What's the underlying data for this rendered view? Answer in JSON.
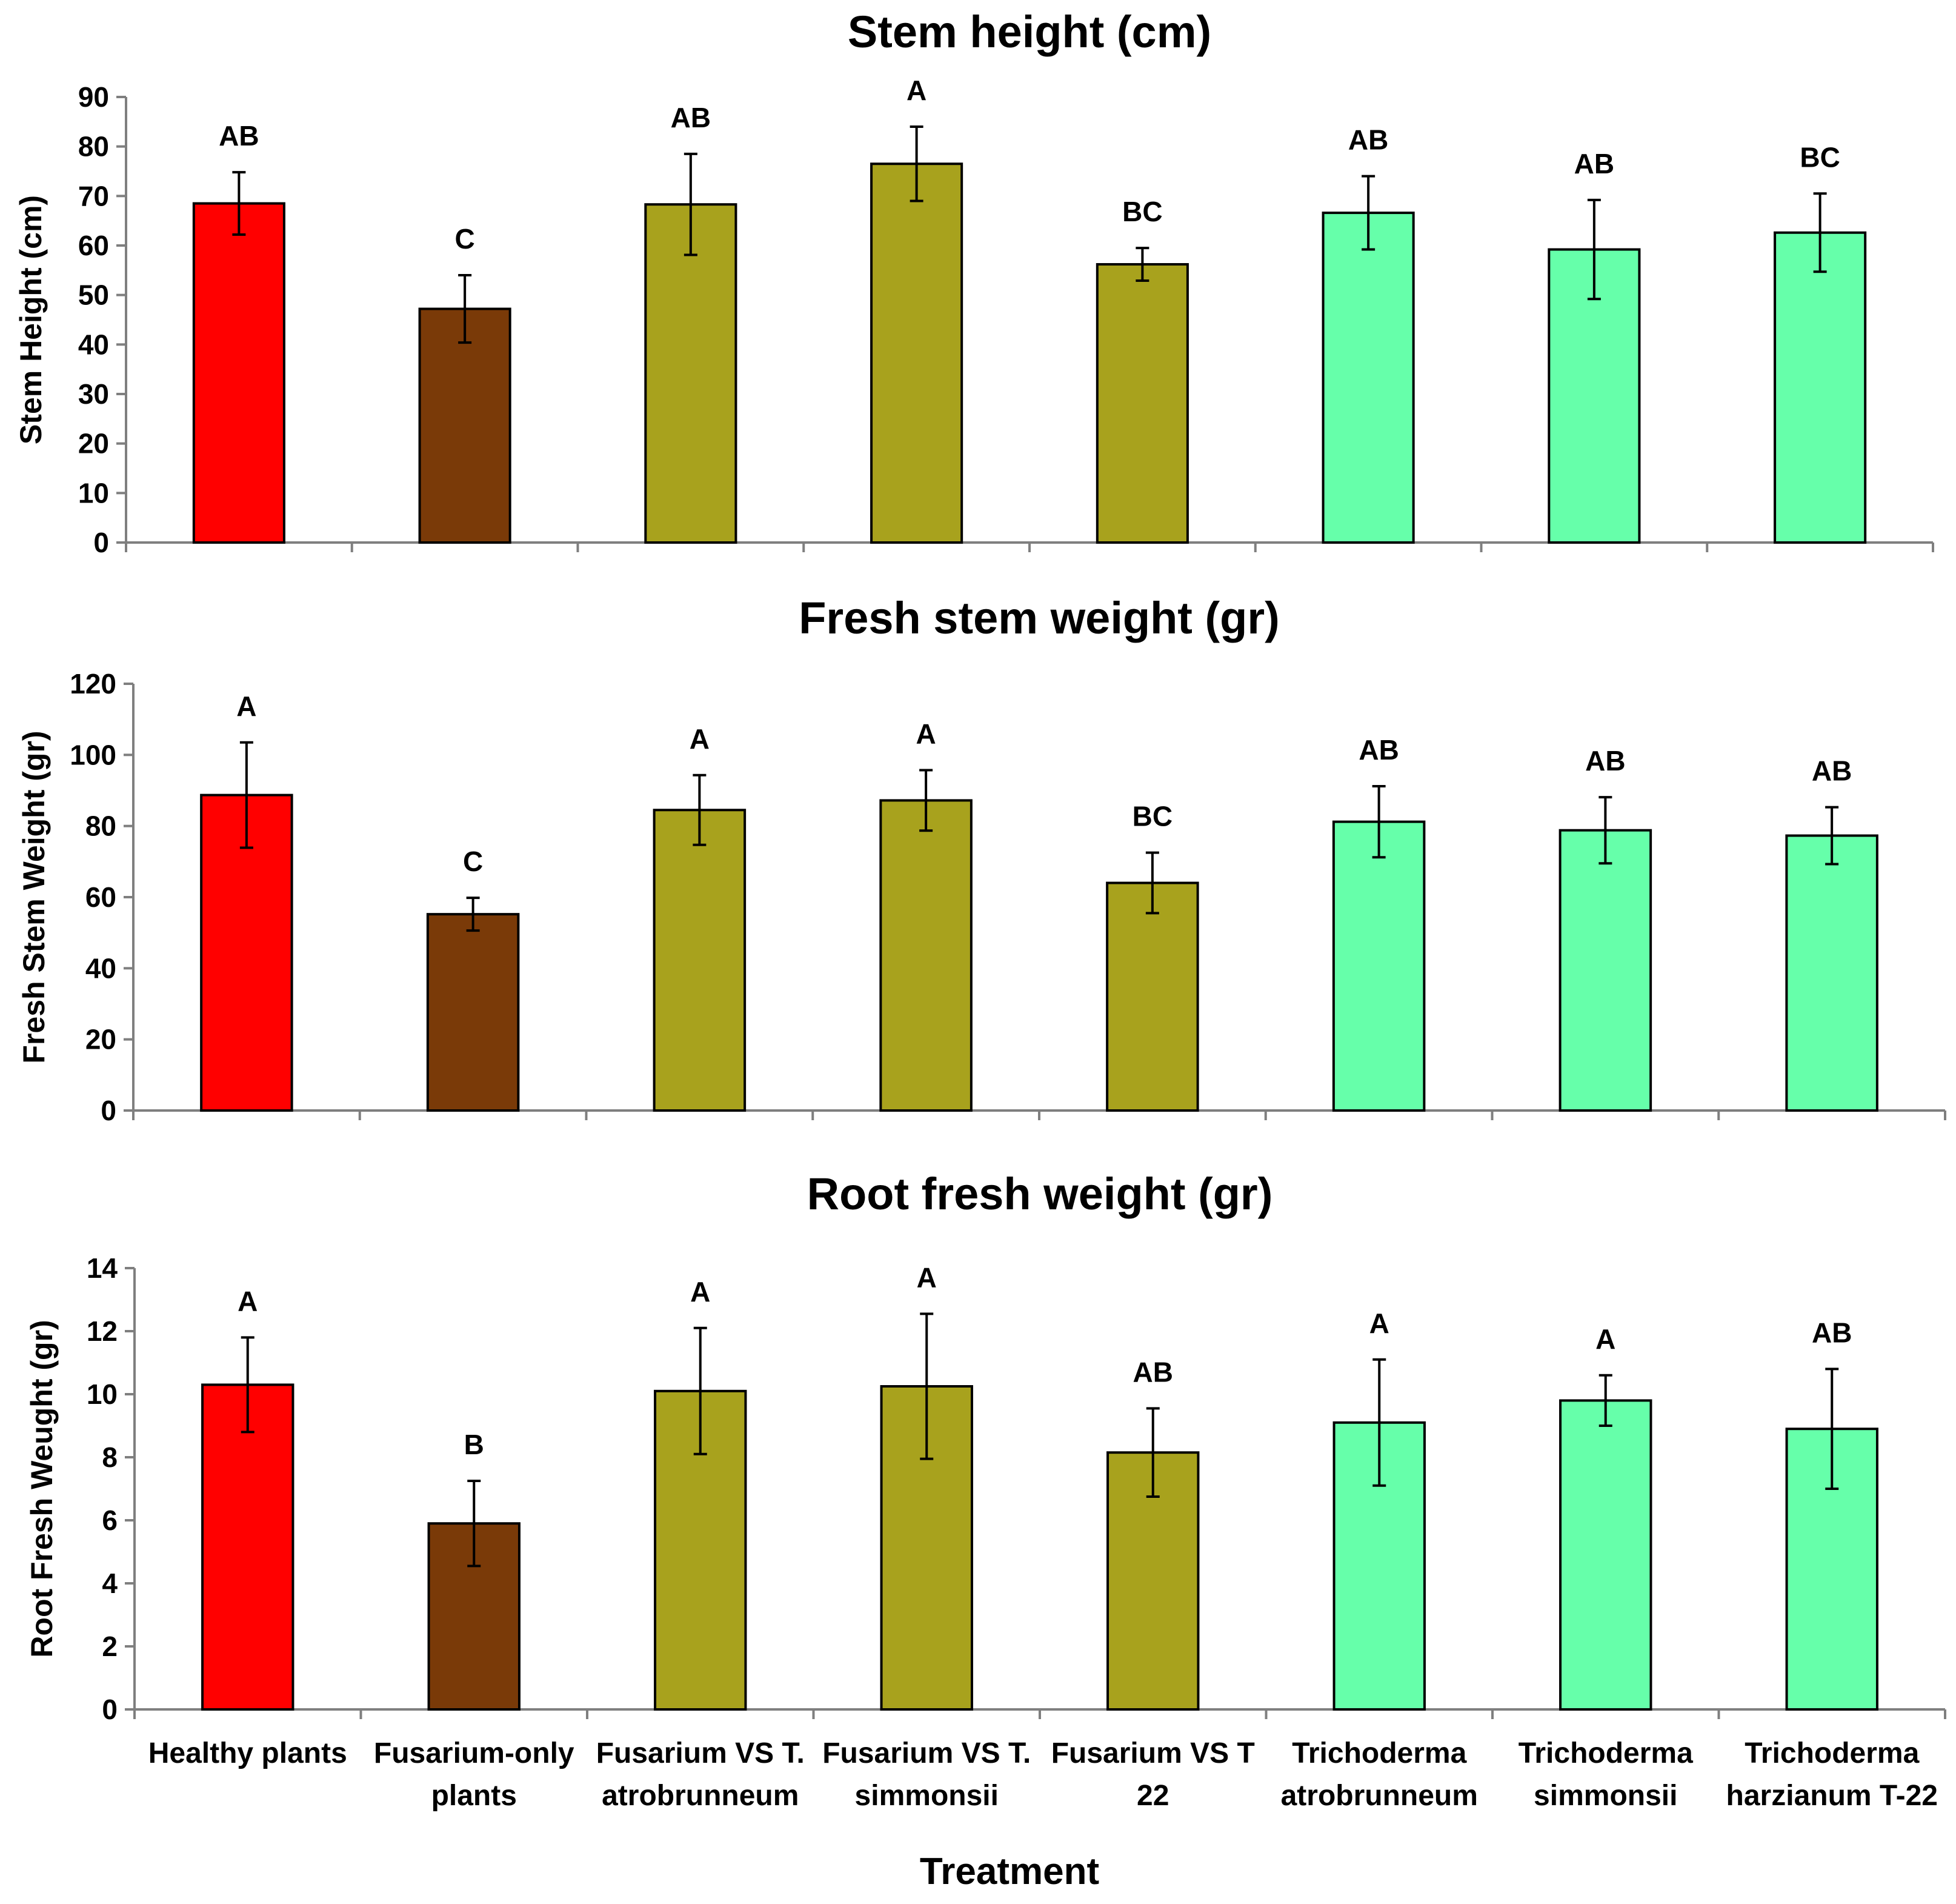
{
  "categories": [
    [
      "Healthy plants"
    ],
    [
      "Fusarium-only",
      "plants"
    ],
    [
      "Fusarium VS T.",
      "atrobrunneum"
    ],
    [
      "Fusarium VS T.",
      "simmonsii"
    ],
    [
      "Fusarium VS T",
      "22"
    ],
    [
      "Trichoderma",
      "atrobrunneum"
    ],
    [
      "Trichoderma",
      "simmonsii"
    ],
    [
      "Trichoderma",
      "harzianum T-22"
    ]
  ],
  "colors": [
    "#ff0000",
    "#7a3a08",
    "#a8a21d",
    "#a8a21d",
    "#a8a21d",
    "#66ffaa",
    "#66ffaa",
    "#66ffaa"
  ],
  "xlabel": "Treatment",
  "chart_data": [
    {
      "type": "bar",
      "title": "Stem height (cm)",
      "ylabel": "Stem Height (cm)",
      "xlabel": "",
      "ylim": [
        0,
        90
      ],
      "yticks": [
        0,
        10,
        20,
        30,
        40,
        50,
        60,
        70,
        80,
        90
      ],
      "values": [
        68.5,
        47.2,
        68.3,
        76.5,
        56.2,
        66.6,
        59.2,
        62.6
      ],
      "errors": [
        6.3,
        6.8,
        10.2,
        7.5,
        3.3,
        7.4,
        10.0,
        7.9
      ],
      "significance": [
        "AB",
        "C",
        "AB",
        "A",
        "BC",
        "AB",
        "AB",
        "BC"
      ]
    },
    {
      "type": "bar",
      "title": "Fresh stem weight  (gr)",
      "ylabel": "Fresh Stem Weight (gr)",
      "xlabel": "",
      "ylim": [
        0,
        120
      ],
      "yticks": [
        0,
        20,
        40,
        60,
        80,
        100,
        120
      ],
      "values": [
        88.7,
        55.2,
        84.5,
        87.2,
        64.0,
        81.2,
        78.8,
        77.3
      ],
      "errors": [
        14.8,
        4.6,
        9.8,
        8.5,
        8.5,
        10.0,
        9.3,
        8.0
      ],
      "significance": [
        "A",
        "C",
        "A",
        "A",
        "BC",
        "AB",
        "AB",
        "AB"
      ]
    },
    {
      "type": "bar",
      "title": "Root fresh weight  (gr)",
      "ylabel": "Root Fresh Weught (gr)",
      "xlabel": "Treatment",
      "ylim": [
        0,
        14
      ],
      "yticks": [
        0,
        2,
        4,
        6,
        8,
        10,
        12,
        14
      ],
      "values": [
        10.3,
        5.9,
        10.1,
        10.25,
        8.15,
        9.1,
        9.8,
        8.9
      ],
      "errors": [
        1.5,
        1.35,
        2.0,
        2.3,
        1.4,
        2.0,
        0.8,
        1.9
      ],
      "significance": [
        "A",
        "B",
        "A",
        "A",
        "AB",
        "A",
        "A",
        "AB"
      ]
    }
  ]
}
